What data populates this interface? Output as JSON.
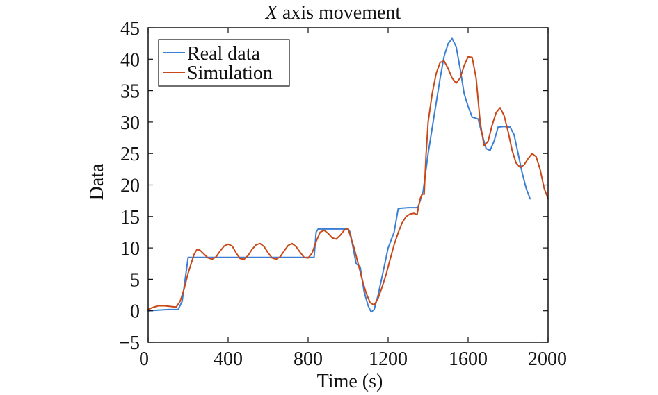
{
  "chart_data": {
    "type": "line",
    "title_italic": "X",
    "title_rest": " axis movement",
    "xlabel": "Time (s)",
    "ylabel": "Data",
    "xlim": [
      0,
      2000
    ],
    "ylim": [
      -5,
      45
    ],
    "xticks": [
      0,
      400,
      800,
      1200,
      1600,
      2000
    ],
    "xtick_labels": [
      "0",
      "400",
      "800",
      "1200",
      "1600",
      "2000"
    ],
    "yticks": [
      -5,
      0,
      5,
      10,
      15,
      20,
      25,
      30,
      35,
      40,
      45
    ],
    "ytick_labels": [
      "−5",
      "0",
      "5",
      "10",
      "15",
      "20",
      "25",
      "30",
      "35",
      "40",
      "45"
    ],
    "grid": false,
    "legend_position": "top-left",
    "series": [
      {
        "name": "Real data",
        "color": "#3a7fd5",
        "x": [
          0,
          50,
          100,
          150,
          170,
          185,
          200,
          210,
          300,
          400,
          500,
          600,
          700,
          800,
          830,
          840,
          850,
          860,
          900,
          950,
          1000,
          1010,
          1040,
          1060,
          1080,
          1100,
          1115,
          1130,
          1150,
          1170,
          1200,
          1230,
          1250,
          1260,
          1300,
          1340,
          1350,
          1375,
          1400,
          1430,
          1460,
          1480,
          1500,
          1520,
          1540,
          1560,
          1580,
          1600,
          1620,
          1650,
          1670,
          1690,
          1710,
          1730,
          1750,
          1780,
          1810,
          1830,
          1850,
          1870,
          1890,
          1910
        ],
        "y": [
          0,
          0.1,
          0.2,
          0.2,
          1.5,
          5,
          8.5,
          8.5,
          8.5,
          8.5,
          8.5,
          8.5,
          8.5,
          8.5,
          8.5,
          12.5,
          13,
          13,
          13,
          13,
          13,
          12.5,
          7.5,
          7,
          3,
          0.8,
          -0.2,
          0.2,
          2.5,
          5.5,
          10,
          12.5,
          16.2,
          16.3,
          16.4,
          16.4,
          16.5,
          19,
          25,
          31,
          37,
          40.5,
          42.5,
          43.3,
          42,
          38.5,
          34.5,
          32.5,
          30.8,
          30.5,
          28,
          25.8,
          25.5,
          27,
          29.2,
          29.3,
          29.2,
          28,
          25,
          22,
          19.5,
          17.8
        ]
      },
      {
        "name": "Simulation",
        "color": "#c94818",
        "x": [
          0,
          20,
          50,
          80,
          110,
          140,
          160,
          180,
          200,
          215,
          230,
          245,
          260,
          280,
          300,
          320,
          340,
          360,
          380,
          400,
          420,
          440,
          460,
          480,
          500,
          520,
          540,
          560,
          580,
          600,
          620,
          640,
          660,
          680,
          700,
          720,
          740,
          760,
          780,
          800,
          820,
          840,
          860,
          880,
          900,
          920,
          940,
          960,
          980,
          1000,
          1010,
          1030,
          1050,
          1070,
          1090,
          1110,
          1130,
          1150,
          1170,
          1190,
          1210,
          1230,
          1250,
          1270,
          1290,
          1310,
          1330,
          1345,
          1350,
          1360,
          1370,
          1380,
          1390,
          1400,
          1420,
          1440,
          1460,
          1480,
          1500,
          1520,
          1540,
          1560,
          1580,
          1600,
          1620,
          1640,
          1660,
          1680,
          1700,
          1720,
          1740,
          1760,
          1780,
          1800,
          1820,
          1840,
          1860,
          1880,
          1900,
          1920,
          1940,
          1960,
          1980,
          2000
        ],
        "y": [
          0.2,
          0.5,
          0.8,
          0.8,
          0.7,
          0.6,
          1.5,
          3.5,
          6,
          7.5,
          9,
          9.8,
          9.6,
          9,
          8.4,
          8.2,
          8.6,
          9.5,
          10.3,
          10.6,
          10.3,
          9.2,
          8.3,
          8.2,
          8.8,
          9.8,
          10.5,
          10.7,
          10.2,
          9.2,
          8.4,
          8.2,
          8.6,
          9.5,
          10.4,
          10.7,
          10.2,
          9.3,
          8.5,
          8.4,
          9.2,
          11,
          12.5,
          12.8,
          12.3,
          11.6,
          11.4,
          12,
          12.8,
          13.1,
          12,
          10,
          7.5,
          5,
          2.8,
          1.3,
          0.9,
          2,
          3.8,
          5.8,
          8.2,
          10.5,
          12.4,
          14,
          15,
          15.4,
          15.5,
          15.3,
          16.2,
          17.8,
          18.6,
          18.5,
          25,
          30,
          34.5,
          37.7,
          39.5,
          39.7,
          38.5,
          37,
          36.2,
          37,
          39,
          40.4,
          40.3,
          37,
          30,
          26.2,
          27,
          29.5,
          31.5,
          32.3,
          31,
          28.5,
          25.5,
          23.5,
          22.8,
          23.2,
          24.2,
          25,
          24.5,
          22.5,
          19.5,
          17.8
        ]
      }
    ]
  }
}
